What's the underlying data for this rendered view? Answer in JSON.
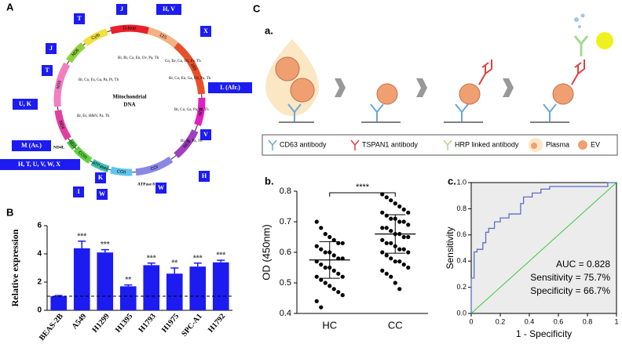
{
  "panels": {
    "A": "A",
    "B": "B",
    "C": "C",
    "a": "a.",
    "b": "b.",
    "c": "c."
  },
  "mito": {
    "center_label": [
      "Mitochondrial",
      "DNA"
    ],
    "genes": [
      {
        "name": "D-loop",
        "color": "#e8202a"
      },
      {
        "name": "12S",
        "color": "#f4b183"
      },
      {
        "name": "16S",
        "color": "#e8502a"
      },
      {
        "name": "ND1",
        "color": "#e020c0"
      },
      {
        "name": "ND2",
        "color": "#a040c0"
      },
      {
        "name": "COI",
        "color": "#8a88e6"
      },
      {
        "name": "COII",
        "color": "#60c4ec"
      },
      {
        "name": "ATPase6",
        "color": "#40c0b0"
      },
      {
        "name": "COIII",
        "color": "#60d040"
      },
      {
        "name": "ND3",
        "color": "#50c040"
      },
      {
        "name": "ND4",
        "color": "#e040a0"
      },
      {
        "name": "ND5",
        "color": "#f080c0"
      },
      {
        "name": "ND6",
        "color": "#90d040"
      },
      {
        "name": "Cytb",
        "color": "#f0e040"
      }
    ],
    "haplogroups": [
      "T",
      "J",
      "H, V",
      "X",
      "L (Afr.)",
      "V",
      "H",
      "W",
      "K",
      "W",
      "I",
      "H, T, U, V, W, X",
      "M (As.)",
      "U, K",
      "T",
      "J"
    ],
    "notes": [
      "Bi, Br, Co, En, Ov, Pa, Th",
      "Co, Ee, Ga, Ov, Pa, Th",
      "Br, Co, En, Ga, Ov, Pa, Th",
      "Br, Co, Es, Ga, Pa, Pt, Th",
      "Br, Co, Ga, Pa, Pt, Th",
      "Br, Es, H&N, Pa, Th",
      "Bi, Br, Pa, Th"
    ],
    "small_labels": [
      "ND4L",
      "ATPase 8"
    ]
  },
  "diagram": {
    "legend": [
      "CD63 antibody",
      "TSPAN1 antibody",
      "HRP linked antibody",
      "Plasma",
      "EV"
    ]
  },
  "chart_data": [
    {
      "type": "bar",
      "ylabel": "Relative expression",
      "categories": [
        "BEAS-2B",
        "A549",
        "H1299",
        "H1395",
        "H1793",
        "H1975",
        "SPC-A1",
        "H1792"
      ],
      "values": [
        1,
        4.4,
        4.1,
        1.7,
        3.2,
        2.6,
        3.1,
        3.4
      ],
      "errors": [
        0.05,
        0.5,
        0.2,
        0.1,
        0.15,
        0.4,
        0.25,
        0.15
      ],
      "significance": [
        null,
        "***",
        "***",
        "**",
        "***",
        "**",
        "***",
        "***"
      ],
      "reference_line": 1,
      "color": "#1c1cf0",
      "ylim": [
        0,
        6
      ],
      "yticks": [
        0,
        2,
        4,
        6
      ]
    },
    {
      "type": "dot",
      "ylabel": "OD (450nm)",
      "annotation": "****",
      "color": "#000000",
      "ylim": [
        0.4,
        0.8
      ],
      "yticks": [
        0.4,
        0.5,
        0.6,
        0.7,
        0.8
      ],
      "series": [
        {
          "name": "HC",
          "mean": 0.575,
          "sd": 0.06,
          "values": [
            0.7,
            0.68,
            0.66,
            0.65,
            0.64,
            0.63,
            0.63,
            0.62,
            0.61,
            0.6,
            0.6,
            0.59,
            0.58,
            0.58,
            0.57,
            0.56,
            0.55,
            0.55,
            0.54,
            0.53,
            0.52,
            0.52,
            0.51,
            0.5,
            0.49,
            0.48,
            0.47,
            0.46,
            0.44,
            0.42
          ]
        },
        {
          "name": "CC",
          "mean": 0.66,
          "sd": 0.063,
          "values": [
            0.79,
            0.78,
            0.77,
            0.76,
            0.75,
            0.74,
            0.73,
            0.73,
            0.72,
            0.71,
            0.71,
            0.7,
            0.7,
            0.69,
            0.68,
            0.68,
            0.67,
            0.66,
            0.66,
            0.65,
            0.65,
            0.64,
            0.63,
            0.63,
            0.62,
            0.61,
            0.61,
            0.6,
            0.6,
            0.59,
            0.58,
            0.57,
            0.57,
            0.56,
            0.55,
            0.54,
            0.53,
            0.52,
            0.5,
            0.48
          ]
        }
      ]
    },
    {
      "type": "line",
      "xlabel": "1 - Specificity",
      "ylabel": "Sensitivity",
      "color": "#5a6ec8",
      "diagonal_color": "#3cc83c",
      "annotations": [
        "AUC = 0.828",
        "Sensitivity = 75.7%",
        "Specificity = 66.7%"
      ],
      "x": [
        0,
        0,
        0.02,
        0.02,
        0.04,
        0.04,
        0.08,
        0.08,
        0.1,
        0.1,
        0.12,
        0.12,
        0.16,
        0.16,
        0.2,
        0.2,
        0.26,
        0.26,
        0.34,
        0.34,
        0.36,
        0.36,
        0.42,
        0.42,
        0.48,
        0.48,
        0.54,
        0.54,
        0.94,
        0.94,
        1
      ],
      "y": [
        0,
        0.27,
        0.27,
        0.47,
        0.47,
        0.49,
        0.49,
        0.54,
        0.54,
        0.62,
        0.62,
        0.65,
        0.65,
        0.7,
        0.7,
        0.73,
        0.73,
        0.76,
        0.76,
        0.84,
        0.84,
        0.89,
        0.89,
        0.92,
        0.92,
        0.95,
        0.95,
        0.97,
        0.97,
        1,
        1
      ],
      "xlim": [
        0,
        1
      ],
      "ylim": [
        0,
        1
      ],
      "xticks": [
        0,
        0.2,
        0.4,
        0.6,
        0.8,
        1
      ],
      "yticks": [
        {
          "value": 0,
          "label": "0.0"
        },
        0.2,
        0.4,
        0.6,
        0.8,
        {
          "value": 1,
          "label": "1.0"
        }
      ]
    }
  ]
}
